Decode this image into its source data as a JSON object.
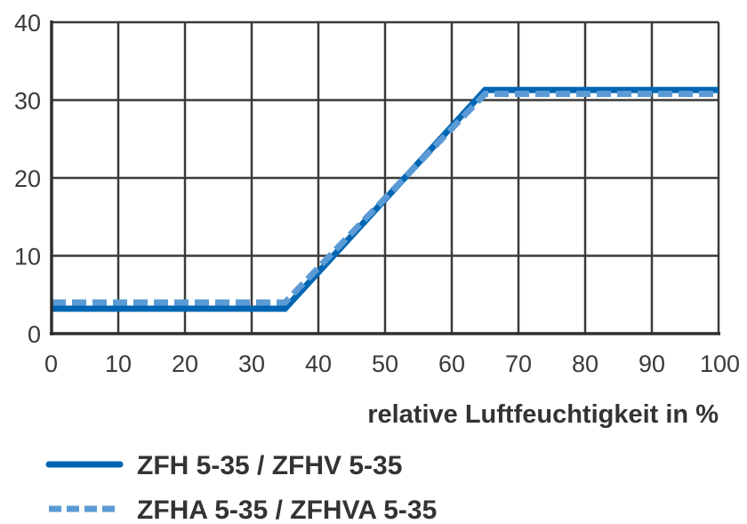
{
  "chart_data": {
    "type": "line",
    "xlabel": "relative Luftfeuchtigkeit in %",
    "ylabel": "",
    "xlim": [
      0,
      100
    ],
    "ylim": [
      0,
      40
    ],
    "xticks": [
      0,
      10,
      20,
      30,
      40,
      50,
      60,
      70,
      80,
      90,
      100
    ],
    "yticks": [
      0,
      10,
      20,
      30,
      40
    ],
    "grid": true,
    "legend_position": "bottom-left",
    "series": [
      {
        "name": "ZFH 5-35 / ZFHV 5-35",
        "style": "solid",
        "color": "#0066b3",
        "x": [
          0,
          35,
          65,
          100
        ],
        "y": [
          3.2,
          3.2,
          31.3,
          31.3
        ]
      },
      {
        "name": "ZFHA 5-35 / ZFHVA 5-35",
        "style": "dashed",
        "color": "#5b9bd5",
        "x": [
          0,
          35,
          65,
          100
        ],
        "y": [
          4.0,
          4.0,
          30.8,
          30.8
        ]
      }
    ]
  }
}
